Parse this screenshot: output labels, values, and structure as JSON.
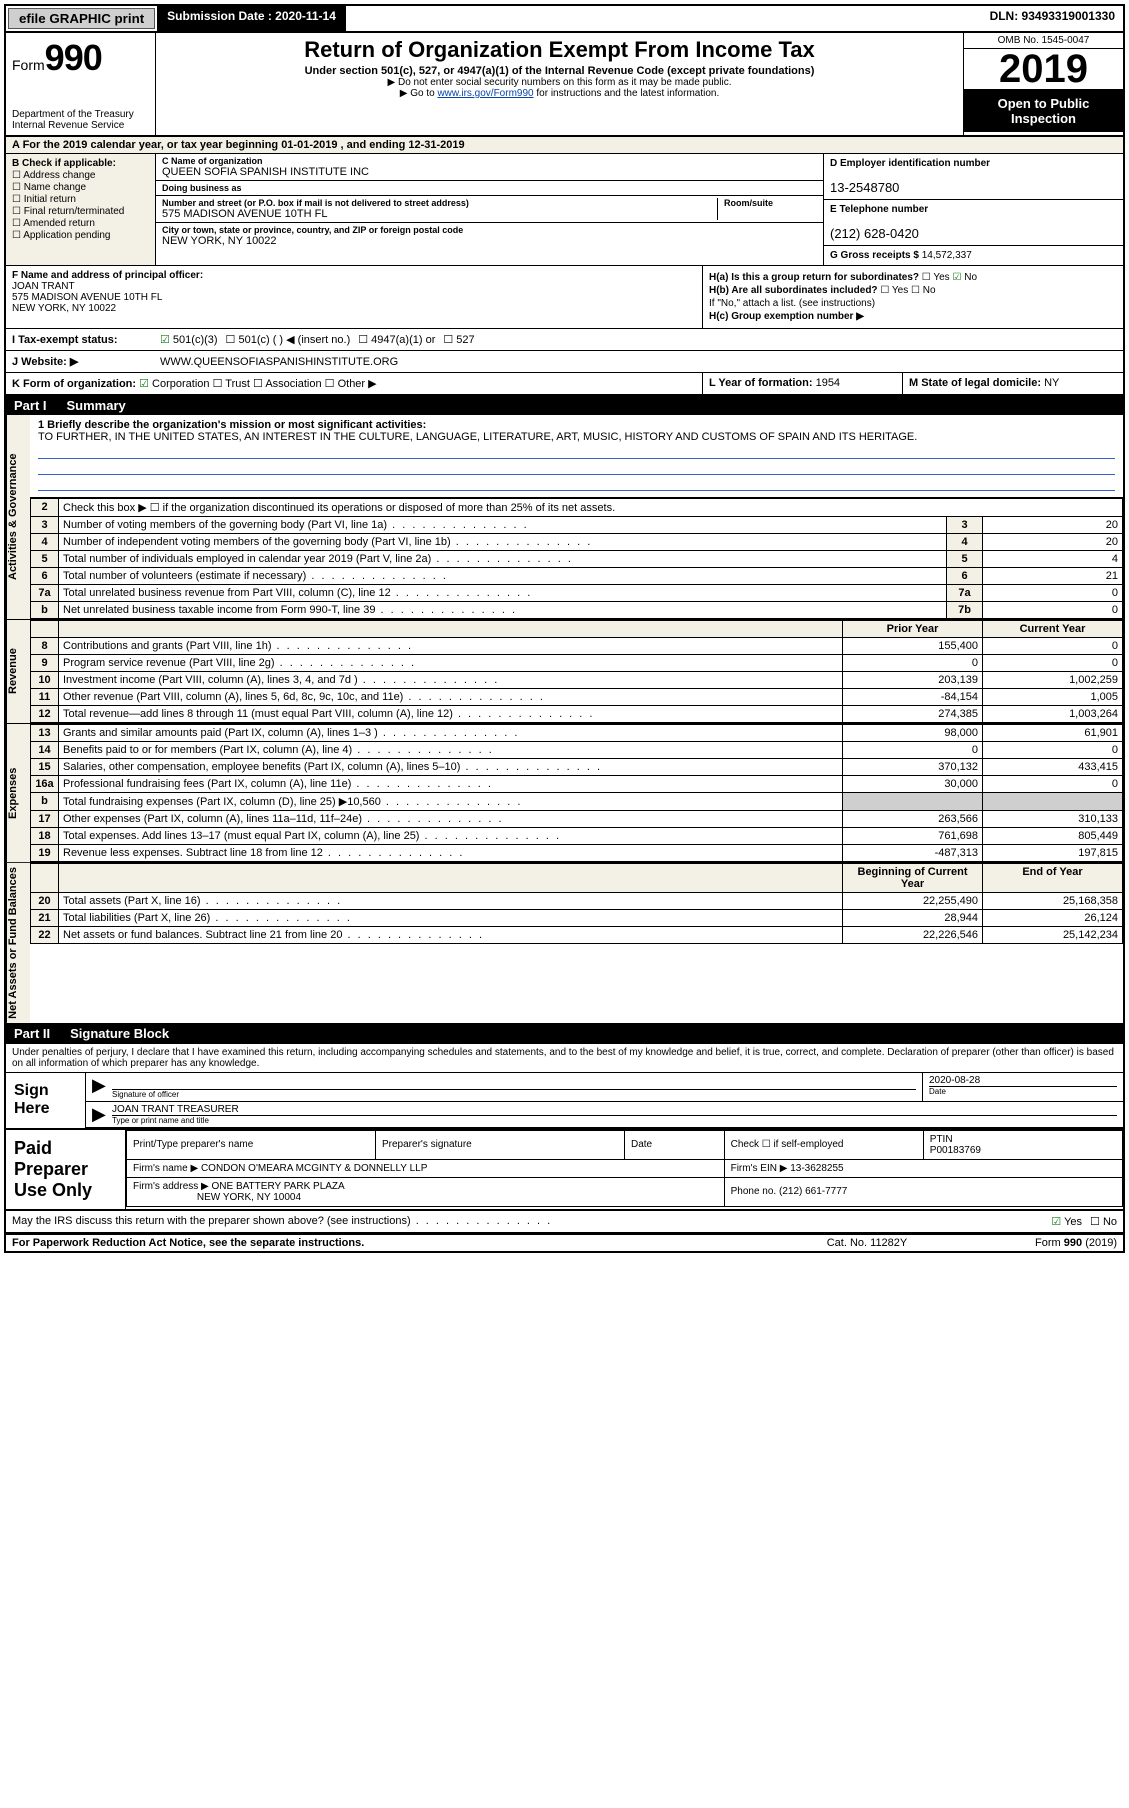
{
  "top_bar": {
    "efile": "efile GRAPHIC print",
    "submission": "Submission Date : 2020-11-14",
    "dln": "DLN: 93493319001330"
  },
  "header": {
    "form_label": "Form",
    "form_no": "990",
    "dept": "Department of the Treasury\nInternal Revenue Service",
    "title": "Return of Organization Exempt From Income Tax",
    "sub": "Under section 501(c), 527, or 4947(a)(1) of the Internal Revenue Code (except private foundations)",
    "note1": "Do not enter social security numbers on this form as it may be made public.",
    "note2_pre": "Go to ",
    "note2_link": "www.irs.gov/Form990",
    "note2_post": " for instructions and the latest information.",
    "omb": "OMB No. 1545-0047",
    "year": "2019",
    "open": "Open to Public Inspection"
  },
  "row_a": "A For the 2019 calendar year, or tax year beginning 01-01-2019    , and ending 12-31-2019",
  "section_b": {
    "heading": "B Check if applicable:",
    "address_change": "Address change",
    "name_change": "Name change",
    "initial_return": "Initial return",
    "final_return": "Final return/terminated",
    "amended_return": "Amended return",
    "application_pending": "Application pending"
  },
  "section_c": {
    "name_lbl": "C Name of organization",
    "name": "QUEEN SOFIA SPANISH INSTITUTE INC",
    "dba_lbl": "Doing business as",
    "dba": "",
    "street_lbl": "Number and street (or P.O. box if mail is not delivered to street address)",
    "street": "575 MADISON AVENUE 10TH FL",
    "suite_lbl": "Room/suite",
    "city_lbl": "City or town, state or province, country, and ZIP or foreign postal code",
    "city": "NEW YORK, NY  10022"
  },
  "section_d": {
    "lbl": "D Employer identification number",
    "val": "13-2548780"
  },
  "section_e": {
    "lbl": "E Telephone number",
    "val": "(212) 628-0420"
  },
  "section_g": {
    "lbl": "G Gross receipts $",
    "val": "14,572,337"
  },
  "section_f": {
    "lbl": "F  Name and address of principal officer:",
    "name": "JOAN TRANT",
    "addr1": "575 MADISON AVENUE 10TH FL",
    "addr2": "NEW YORK, NY  10022"
  },
  "section_h": {
    "ha": "H(a)  Is this a group return for subordinates?",
    "ha_yes": "Yes",
    "ha_no": "No",
    "hb": "H(b)  Are all subordinates included?",
    "hb_yes": "Yes",
    "hb_no": "No",
    "hb_note": "If \"No,\" attach a list. (see instructions)",
    "hc": "H(c)  Group exemption number ▶"
  },
  "section_i": {
    "lbl": "I   Tax-exempt status:",
    "c3": "501(c)(3)",
    "c_blank": "501(c) (   ) ◀ (insert no.)",
    "a1": "4947(a)(1) or",
    "s527": "527"
  },
  "section_j": {
    "lbl": "J   Website: ▶",
    "val": "WWW.QUEENSOFIASPANISHINSTITUTE.ORG"
  },
  "section_k": {
    "lbl": "K Form of organization:",
    "corp": "Corporation",
    "trust": "Trust",
    "assoc": "Association",
    "other": "Other ▶"
  },
  "section_l": {
    "lbl": "L Year of formation:",
    "val": "1954"
  },
  "section_m": {
    "lbl": "M State of legal domicile:",
    "val": "NY"
  },
  "part1": {
    "title_num": "Part I",
    "title": "Summary",
    "vtab_gov": "Activities & Governance",
    "vtab_rev": "Revenue",
    "vtab_exp": "Expenses",
    "vtab_net": "Net Assets or Fund Balances",
    "line1_lbl": "1  Briefly describe the organization's mission or most significant activities:",
    "line1_val": "TO FURTHER, IN THE UNITED STATES, AN INTEREST IN THE CULTURE, LANGUAGE, LITERATURE, ART, MUSIC, HISTORY AND CUSTOMS OF SPAIN AND ITS HERITAGE.",
    "line2": "Check this box ▶ ☐  if the organization discontinued its operations or disposed of more than 25% of its net assets.",
    "prior_year": "Prior Year",
    "current_year": "Current Year",
    "beg_year": "Beginning of Current Year",
    "end_year": "End of Year",
    "rows_gov": [
      {
        "n": "3",
        "t": "Number of voting members of the governing body (Part VI, line 1a)",
        "box": "3",
        "v": "20"
      },
      {
        "n": "4",
        "t": "Number of independent voting members of the governing body (Part VI, line 1b)",
        "box": "4",
        "v": "20"
      },
      {
        "n": "5",
        "t": "Total number of individuals employed in calendar year 2019 (Part V, line 2a)",
        "box": "5",
        "v": "4"
      },
      {
        "n": "6",
        "t": "Total number of volunteers (estimate if necessary)",
        "box": "6",
        "v": "21"
      },
      {
        "n": "7a",
        "t": "Total unrelated business revenue from Part VIII, column (C), line 12",
        "box": "7a",
        "v": "0"
      },
      {
        "n": "b",
        "t": "Net unrelated business taxable income from Form 990-T, line 39",
        "box": "7b",
        "v": "0"
      }
    ],
    "rows_rev": [
      {
        "n": "8",
        "t": "Contributions and grants (Part VIII, line 1h)",
        "py": "155,400",
        "cy": "0"
      },
      {
        "n": "9",
        "t": "Program service revenue (Part VIII, line 2g)",
        "py": "0",
        "cy": "0"
      },
      {
        "n": "10",
        "t": "Investment income (Part VIII, column (A), lines 3, 4, and 7d )",
        "py": "203,139",
        "cy": "1,002,259"
      },
      {
        "n": "11",
        "t": "Other revenue (Part VIII, column (A), lines 5, 6d, 8c, 9c, 10c, and 11e)",
        "py": "-84,154",
        "cy": "1,005"
      },
      {
        "n": "12",
        "t": "Total revenue—add lines 8 through 11 (must equal Part VIII, column (A), line 12)",
        "py": "274,385",
        "cy": "1,003,264"
      }
    ],
    "rows_exp": [
      {
        "n": "13",
        "t": "Grants and similar amounts paid (Part IX, column (A), lines 1–3 )",
        "py": "98,000",
        "cy": "61,901"
      },
      {
        "n": "14",
        "t": "Benefits paid to or for members (Part IX, column (A), line 4)",
        "py": "0",
        "cy": "0"
      },
      {
        "n": "15",
        "t": "Salaries, other compensation, employee benefits (Part IX, column (A), lines 5–10)",
        "py": "370,132",
        "cy": "433,415"
      },
      {
        "n": "16a",
        "t": "Professional fundraising fees (Part IX, column (A), line 11e)",
        "py": "30,000",
        "cy": "0"
      },
      {
        "n": "b",
        "t": "Total fundraising expenses (Part IX, column (D), line 25) ▶10,560",
        "py": "",
        "cy": "",
        "shade": true
      },
      {
        "n": "17",
        "t": "Other expenses (Part IX, column (A), lines 11a–11d, 11f–24e)",
        "py": "263,566",
        "cy": "310,133"
      },
      {
        "n": "18",
        "t": "Total expenses. Add lines 13–17 (must equal Part IX, column (A), line 25)",
        "py": "761,698",
        "cy": "805,449"
      },
      {
        "n": "19",
        "t": "Revenue less expenses. Subtract line 18 from line 12",
        "py": "-487,313",
        "cy": "197,815"
      }
    ],
    "rows_net": [
      {
        "n": "20",
        "t": "Total assets (Part X, line 16)",
        "py": "22,255,490",
        "cy": "25,168,358"
      },
      {
        "n": "21",
        "t": "Total liabilities (Part X, line 26)",
        "py": "28,944",
        "cy": "26,124"
      },
      {
        "n": "22",
        "t": "Net assets or fund balances. Subtract line 21 from line 20",
        "py": "22,226,546",
        "cy": "25,142,234"
      }
    ]
  },
  "part2": {
    "title_num": "Part II",
    "title": "Signature Block",
    "penalties": "Under penalties of perjury, I declare that I have examined this return, including accompanying schedules and statements, and to the best of my knowledge and belief, it is true, correct, and complete. Declaration of preparer (other than officer) is based on all information of which preparer has any knowledge.",
    "sign_here": "Sign Here",
    "sig_officer_lbl": "Signature of officer",
    "sig_date_lbl": "Date",
    "sig_date": "2020-08-28",
    "sig_name_lbl": "Type or print name and title",
    "sig_name": "JOAN TRANT  TREASURER",
    "paid": "Paid Preparer Use Only",
    "prep_name_lbl": "Print/Type preparer's name",
    "prep_sig_lbl": "Preparer's signature",
    "prep_date_lbl": "Date",
    "prep_check": "Check ☐ if self-employed",
    "ptin_lbl": "PTIN",
    "ptin": "P00183769",
    "firm_name_lbl": "Firm's name    ▶",
    "firm_name": "CONDON O'MEARA MCGINTY & DONNELLY LLP",
    "firm_ein_lbl": "Firm's EIN ▶",
    "firm_ein": "13-3628255",
    "firm_addr_lbl": "Firm's address ▶",
    "firm_addr1": "ONE BATTERY PARK PLAZA",
    "firm_addr2": "NEW YORK, NY  10004",
    "phone_lbl": "Phone no.",
    "phone": "(212) 661-7777",
    "discuss": "May the IRS discuss this return with the preparer shown above? (see instructions)",
    "discuss_yes": "Yes",
    "discuss_no": "No"
  },
  "footer": {
    "pra": "For Paperwork Reduction Act Notice, see the separate instructions.",
    "cat": "Cat. No. 11282Y",
    "form": "Form 990 (2019)"
  }
}
